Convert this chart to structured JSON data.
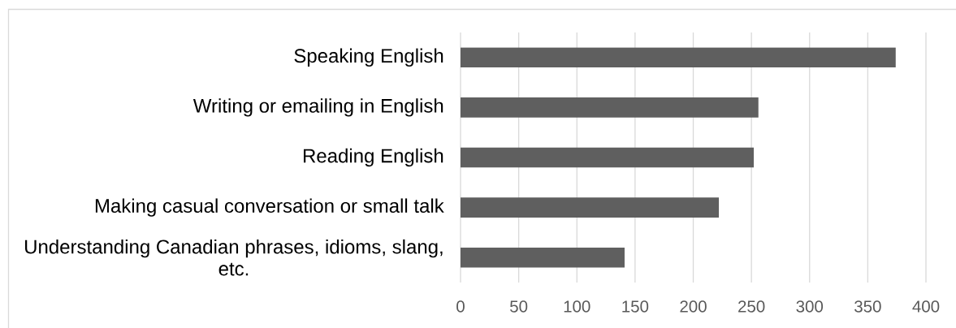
{
  "chart_data": {
    "type": "bar",
    "orientation": "horizontal",
    "categories": [
      "Speaking English",
      "Writing or emailing in English",
      "Reading English",
      "Making casual conversation or small talk",
      "Understanding Canadian phrases, idioms, slang, etc."
    ],
    "values": [
      374,
      256,
      252,
      222,
      141
    ],
    "color": "#5f5f5f",
    "xlim": [
      0,
      400
    ],
    "xticks": [
      0,
      50,
      100,
      150,
      200,
      250,
      300,
      350,
      400
    ],
    "grid": "x"
  }
}
